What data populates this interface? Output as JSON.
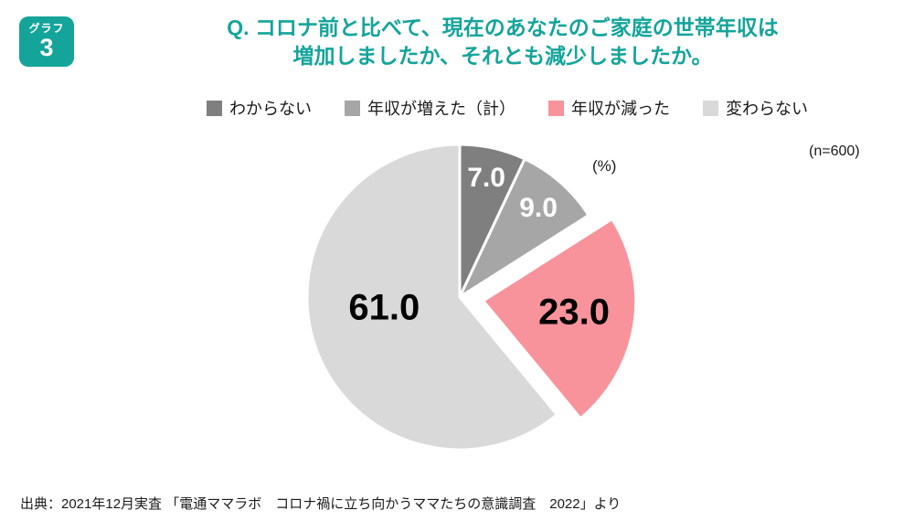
{
  "badge": {
    "label": "グラフ",
    "number": "3"
  },
  "title": {
    "line1": "Q. コロナ前と比べて、現在のあなたのご家庭の世帯年収は",
    "line2": "増加しましたか、それとも減少しましたか。"
  },
  "annotations": {
    "unit": "(%)",
    "sample_size": "(n=600)"
  },
  "source": "出典：2021年12月実査 「電通ママラボ　コロナ禍に立ち向かうママたちの意識調査　2022」より",
  "colors": {
    "accent_teal": "#14a49a",
    "background": "#ffffff"
  },
  "chart_data": {
    "type": "pie",
    "title": "コロナ前と比べて、現在のあなたのご家庭の世帯年収は増加しましたか、それとも減少しましたか。",
    "unit": "%",
    "sample_size": 600,
    "start_angle_deg": 0,
    "direction": "clockwise",
    "legend_position": "top",
    "slices": [
      {
        "name": "わからない",
        "value": 7.0,
        "label": "7.0",
        "color": "#7f7f7f",
        "label_color": "#ffffff",
        "exploded": false
      },
      {
        "name": "年収が増えた（計）",
        "value": 9.0,
        "label": "9.0",
        "color": "#a6a6a6",
        "label_color": "#ffffff",
        "exploded": false
      },
      {
        "name": "年収が減った",
        "value": 23.0,
        "label": "23.0",
        "color": "#f8939c",
        "label_color": "#000000",
        "exploded": true
      },
      {
        "name": "変わらない",
        "value": 61.0,
        "label": "61.0",
        "color": "#d9d9d9",
        "label_color": "#000000",
        "exploded": false
      }
    ]
  }
}
